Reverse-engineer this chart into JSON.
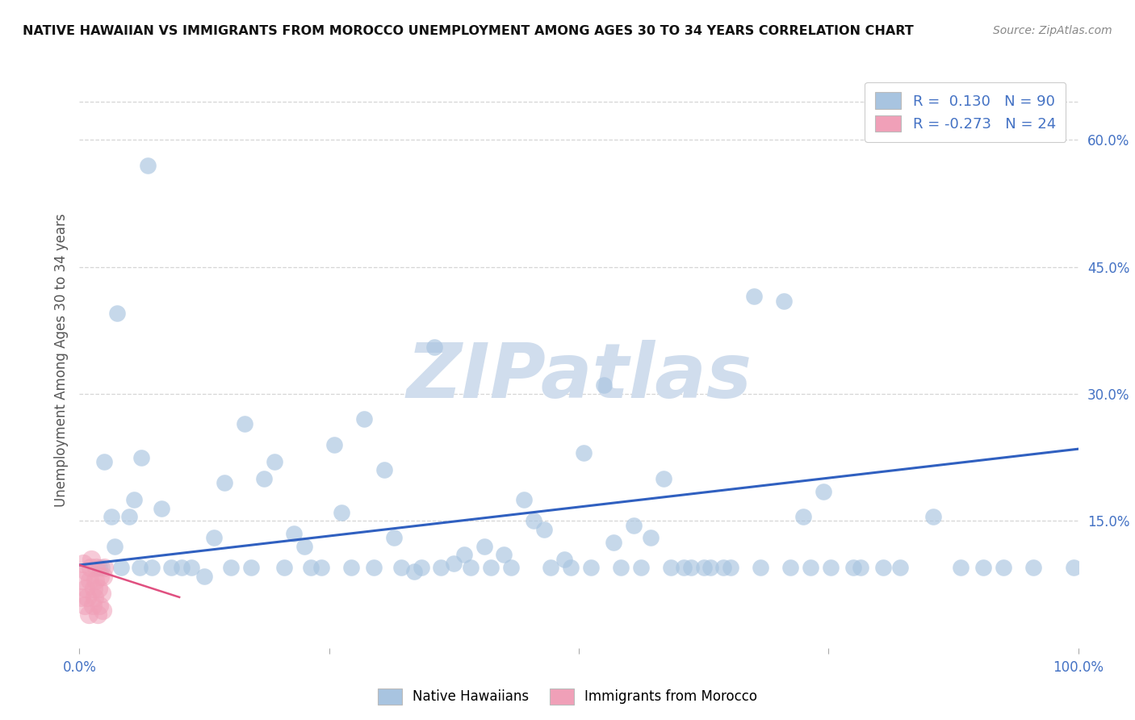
{
  "title": "NATIVE HAWAIIAN VS IMMIGRANTS FROM MOROCCO UNEMPLOYMENT AMONG AGES 30 TO 34 YEARS CORRELATION CHART",
  "source": "Source: ZipAtlas.com",
  "ylabel": "Unemployment Among Ages 30 to 34 years",
  "xlim": [
    0,
    1.0
  ],
  "ylim": [
    0,
    0.68
  ],
  "ytick_right": [
    0.15,
    0.3,
    0.45,
    0.6
  ],
  "ytick_right_labels": [
    "15.0%",
    "30.0%",
    "45.0%",
    "60.0%"
  ],
  "blue_color": "#a8c4e0",
  "pink_color": "#f0a0b8",
  "trend_color": "#3060c0",
  "pink_trend_color": "#e05080",
  "background_color": "#ffffff",
  "grid_color": "#cccccc",
  "watermark": "ZIPatlas",
  "watermark_color": "#d0dded",
  "legend_blue_r": "R = ",
  "legend_blue_rv": "0.130",
  "legend_blue_n": "N = ",
  "legend_blue_nv": "90",
  "legend_pink_r": "R = ",
  "legend_pink_rv": "-0.273",
  "legend_pink_n": "N = ",
  "legend_pink_nv": "24",
  "blue_x": [
    0.068,
    0.038,
    0.025,
    0.02,
    0.042,
    0.055,
    0.06,
    0.032,
    0.035,
    0.05,
    0.125,
    0.135,
    0.145,
    0.185,
    0.195,
    0.205,
    0.215,
    0.165,
    0.225,
    0.255,
    0.305,
    0.335,
    0.355,
    0.375,
    0.285,
    0.315,
    0.295,
    0.385,
    0.405,
    0.425,
    0.455,
    0.485,
    0.505,
    0.525,
    0.445,
    0.465,
    0.535,
    0.555,
    0.585,
    0.605,
    0.625,
    0.645,
    0.675,
    0.705,
    0.725,
    0.745,
    0.775,
    0.805,
    0.855,
    0.905,
    0.082,
    0.072,
    0.092,
    0.102,
    0.112,
    0.152,
    0.172,
    0.232,
    0.242,
    0.262,
    0.272,
    0.322,
    0.342,
    0.362,
    0.392,
    0.412,
    0.432,
    0.472,
    0.492,
    0.512,
    0.542,
    0.562,
    0.572,
    0.592,
    0.612,
    0.632,
    0.652,
    0.682,
    0.712,
    0.732,
    0.752,
    0.782,
    0.822,
    0.882,
    0.925,
    0.955,
    0.975,
    0.995,
    0.062,
    0.022
  ],
  "blue_y": [
    0.57,
    0.395,
    0.22,
    0.095,
    0.095,
    0.175,
    0.095,
    0.155,
    0.12,
    0.155,
    0.085,
    0.13,
    0.195,
    0.2,
    0.22,
    0.095,
    0.135,
    0.265,
    0.12,
    0.24,
    0.21,
    0.09,
    0.355,
    0.1,
    0.27,
    0.13,
    0.095,
    0.11,
    0.12,
    0.11,
    0.15,
    0.105,
    0.23,
    0.31,
    0.175,
    0.14,
    0.125,
    0.145,
    0.2,
    0.095,
    0.095,
    0.095,
    0.415,
    0.41,
    0.155,
    0.185,
    0.095,
    0.095,
    0.155,
    0.095,
    0.165,
    0.095,
    0.095,
    0.095,
    0.095,
    0.095,
    0.095,
    0.095,
    0.095,
    0.16,
    0.095,
    0.095,
    0.095,
    0.095,
    0.095,
    0.095,
    0.095,
    0.095,
    0.095,
    0.095,
    0.095,
    0.095,
    0.13,
    0.095,
    0.095,
    0.095,
    0.095,
    0.095,
    0.095,
    0.095,
    0.095,
    0.095,
    0.095,
    0.095,
    0.095,
    0.095,
    0.62,
    0.095,
    0.225,
    0.095
  ],
  "pink_x": [
    0.002,
    0.003,
    0.004,
    0.005,
    0.006,
    0.007,
    0.008,
    0.009,
    0.01,
    0.011,
    0.012,
    0.013,
    0.014,
    0.015,
    0.016,
    0.017,
    0.018,
    0.019,
    0.02,
    0.021,
    0.022,
    0.023,
    0.024,
    0.025
  ],
  "pink_y": [
    0.06,
    0.08,
    0.1,
    0.05,
    0.07,
    0.09,
    0.06,
    0.04,
    0.08,
    0.095,
    0.105,
    0.05,
    0.07,
    0.06,
    0.08,
    0.095,
    0.04,
    0.07,
    0.05,
    0.085,
    0.065,
    0.045,
    0.085,
    0.095
  ],
  "blue_trend_x": [
    0.0,
    1.0
  ],
  "blue_trend_y": [
    0.098,
    0.235
  ],
  "pink_trend_x": [
    0.0,
    0.1
  ],
  "pink_trend_y": [
    0.098,
    0.06
  ]
}
